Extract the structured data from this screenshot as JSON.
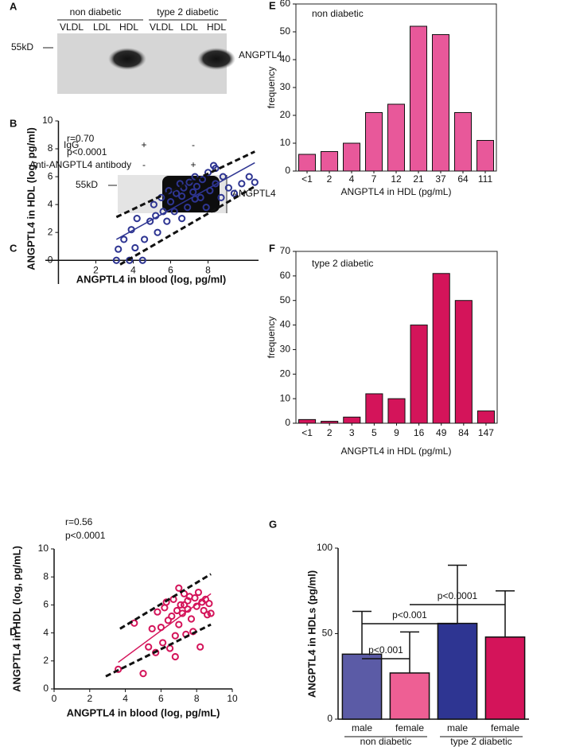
{
  "blot_a": {
    "panel": "A",
    "groups": [
      "non diabetic",
      "type 2 diabetic"
    ],
    "lanes": [
      "VLDL",
      "LDL",
      "HDL",
      "VLDL",
      "LDL",
      "HDL"
    ],
    "marker": "55kD",
    "protein": "ANGPTL4"
  },
  "blot_b": {
    "panel": "B",
    "rows": [
      {
        "name": "IgG",
        "signs": [
          "+",
          "-"
        ]
      },
      {
        "name": "Anti-ANGPTL4 antibody",
        "signs": [
          "-",
          "+"
        ]
      }
    ],
    "marker": "55kD",
    "protein": "ANGPTL4"
  },
  "chart_data": [
    {
      "type": "scatter",
      "panel": "C",
      "annotations": [
        "r=0.70",
        "p<0.0001"
      ],
      "x_label": "ANGPTL4 in blood (log, pg/ml)",
      "y_label": "ANGPTL4 in HDL (log, pg/ml)",
      "color": "#2e3592",
      "x": [
        3.1,
        3.2,
        3.5,
        3.8,
        3.9,
        4.1,
        4.2,
        4.5,
        4.6,
        4.9,
        5.1,
        5.2,
        5.3,
        5.5,
        5.6,
        5.8,
        5.9,
        6.0,
        6.2,
        6.3,
        6.5,
        6.6,
        6.6,
        6.7,
        6.9,
        7.0,
        7.2,
        7.3,
        7.3,
        7.4,
        7.6,
        7.7,
        7.9,
        8.0,
        8.1,
        8.3,
        8.4,
        8.4,
        8.7,
        8.8,
        9.1,
        9.4,
        9.8,
        10.2,
        10.5
      ],
      "values": [
        0,
        0.8,
        1.5,
        0,
        2.2,
        0.9,
        3.0,
        0,
        1.5,
        2.8,
        4.0,
        3.2,
        2.0,
        4.5,
        3.5,
        2.8,
        5.0,
        4.2,
        3.5,
        4.8,
        5.5,
        3.0,
        4.6,
        5.2,
        3.8,
        5.6,
        4.9,
        4.4,
        6.0,
        5.3,
        4.5,
        5.8,
        3.8,
        6.3,
        5.0,
        6.8,
        5.5,
        6.6,
        4.5,
        6.0,
        5.2,
        4.8,
        5.5,
        6.0,
        5.6
      ],
      "fit_lines": [
        {
          "style": "dashed",
          "x": [
            3.1,
            10.5
          ],
          "y": [
            3.1,
            7.8
          ]
        },
        {
          "style": "solid",
          "x": [
            3.1,
            10.5
          ],
          "y": [
            1.5,
            7.0
          ]
        },
        {
          "style": "dashed",
          "x": [
            3.3,
            10.5
          ],
          "y": [
            -0.3,
            5.3
          ]
        }
      ],
      "xlim": [
        -0.7,
        10.7
      ],
      "ylim": [
        -1.7,
        10
      ],
      "xticks": [
        2,
        4,
        6,
        8
      ],
      "yticks": [
        0,
        2,
        4,
        6,
        8,
        10
      ]
    },
    {
      "type": "scatter",
      "panel": "D",
      "annotations": [
        "r=0.56",
        "p<0.0001"
      ],
      "x_label": "ANGPTL4 in blood (log, pg/mL)",
      "y_label": "ANGPTL4 in HDL (log, pg/mL)",
      "color": "#d4145a",
      "x": [
        3.6,
        4.5,
        5.0,
        5.3,
        5.5,
        5.7,
        5.8,
        6.0,
        6.1,
        6.2,
        6.3,
        6.4,
        6.5,
        6.6,
        6.7,
        6.8,
        6.9,
        7.0,
        7.0,
        7.1,
        7.2,
        7.3,
        7.4,
        7.5,
        7.5,
        7.6,
        7.7,
        7.8,
        7.9,
        8.0,
        8.1,
        8.2,
        8.3,
        8.4,
        8.5,
        8.6,
        8.7,
        8.8,
        6.8,
        7.3
      ],
      "values": [
        1.4,
        4.7,
        1.1,
        3.0,
        4.3,
        2.6,
        5.5,
        4.4,
        3.3,
        5.8,
        6.2,
        4.9,
        2.9,
        5.2,
        6.4,
        3.8,
        5.6,
        7.2,
        4.6,
        6.0,
        5.4,
        6.8,
        3.9,
        6.3,
        5.7,
        6.6,
        5.0,
        4.1,
        6.5,
        5.9,
        6.9,
        3.0,
        6.2,
        5.6,
        6.4,
        5.3,
        6.1,
        5.4,
        2.3,
        6.0
      ],
      "fit_lines": [
        {
          "style": "dashed",
          "x": [
            3.7,
            8.8
          ],
          "y": [
            4.3,
            8.2
          ]
        },
        {
          "style": "solid",
          "x": [
            3.6,
            8.8
          ],
          "y": [
            1.9,
            6.8
          ]
        },
        {
          "style": "dashed",
          "x": [
            2.9,
            8.8
          ],
          "y": [
            0.9,
            4.6
          ]
        }
      ],
      "xlim": [
        0,
        10
      ],
      "ylim": [
        0,
        10
      ],
      "xticks": [
        0,
        2,
        4,
        6,
        8,
        10
      ],
      "yticks": [
        0,
        2,
        4,
        6,
        8,
        10
      ]
    },
    {
      "type": "bar",
      "panel": "E",
      "annotations": [
        "non diabetic"
      ],
      "x_label": "ANGPTL4 in HDL (pg/mL)",
      "y_label": "frequency",
      "color": "#e8589a",
      "categories": [
        "<1",
        "2",
        "4",
        "7",
        "12",
        "21",
        "37",
        "64",
        "111"
      ],
      "values": [
        6,
        7,
        10,
        21,
        24,
        52,
        49,
        21,
        11
      ],
      "ylim": [
        0,
        60
      ],
      "yticks": [
        0,
        10,
        20,
        30,
        40,
        50,
        60
      ]
    },
    {
      "type": "bar",
      "panel": "F",
      "annotations": [
        "type 2 diabetic"
      ],
      "x_label": "ANGPTL4 in HDL (pg/mL)",
      "y_label": "frequency",
      "color": "#d4145a",
      "categories": [
        "<1",
        "2",
        "3",
        "5",
        "9",
        "16",
        "49",
        "84",
        "147"
      ],
      "values": [
        1.5,
        0.8,
        2.5,
        12,
        10,
        40,
        61,
        50,
        5
      ],
      "ylim": [
        0,
        70
      ],
      "yticks": [
        0,
        10,
        20,
        30,
        40,
        50,
        60,
        70
      ]
    },
    {
      "type": "bar",
      "panel": "G",
      "y_label": "ANGPTL4 in HDLs (pg/ml)",
      "categories": [
        "male",
        "female",
        "male",
        "female"
      ],
      "groups": [
        "non diabetic",
        "type 2 diabetic"
      ],
      "values": [
        38,
        27,
        56,
        48
      ],
      "errors": [
        25,
        24,
        34,
        27
      ],
      "colors": [
        "#5b5ba6",
        "#ee5f94",
        "#2e3592",
        "#d4145a"
      ],
      "comparisons": [
        {
          "label": "p<0.001",
          "between": [
            0,
            1
          ]
        },
        {
          "label": "p<0.001",
          "between": [
            0,
            2
          ]
        },
        {
          "label": "p<0.0001",
          "between": [
            1,
            3
          ]
        }
      ],
      "ylim": [
        0,
        100
      ],
      "yticks": [
        0,
        50,
        100
      ]
    }
  ]
}
